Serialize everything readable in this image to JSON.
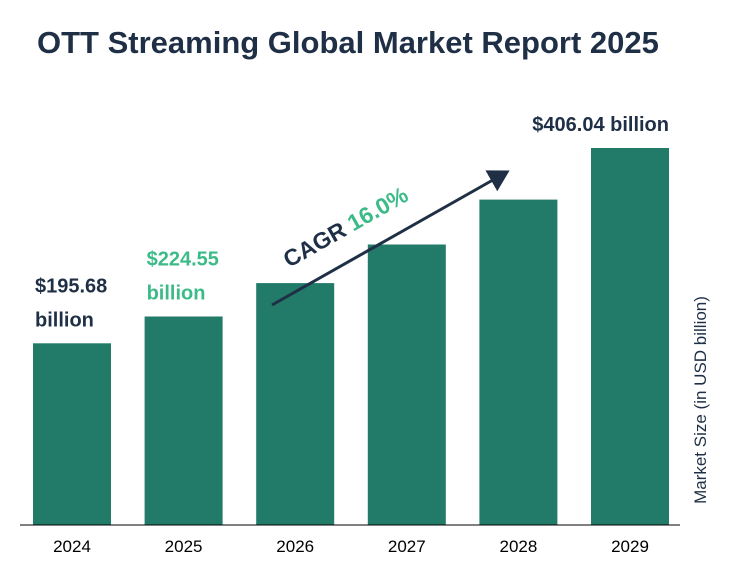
{
  "title": "OTT Streaming Global Market Report 2025",
  "colors": {
    "title": "#1f3046",
    "bar": "#227a69",
    "highlight": "#3cbb88",
    "dark_text": "#1f3046",
    "axis": "#000000"
  },
  "chart_data": {
    "type": "bar",
    "title": "OTT Streaming Global Market Report 2025",
    "categories": [
      "2024",
      "2025",
      "2026",
      "2027",
      "2028",
      "2029"
    ],
    "values": [
      195.68,
      224.55,
      260.48,
      302.16,
      350.5,
      406.04
    ],
    "xlabel": "",
    "ylabel": "Market Size (in USD billion)",
    "ylim": [
      0,
      420
    ],
    "grid": false,
    "value_labels": [
      {
        "index": 0,
        "lines": [
          "$195.68",
          "billion"
        ],
        "color": "dark"
      },
      {
        "index": 1,
        "lines": [
          "$224.55",
          "billion"
        ],
        "color": "highlight"
      },
      {
        "index": 5,
        "lines": [
          "$406.04 billion"
        ],
        "color": "dark"
      }
    ],
    "annotation": {
      "label": "CAGR",
      "value": "16.0%",
      "direction": "up-right arrow"
    }
  }
}
